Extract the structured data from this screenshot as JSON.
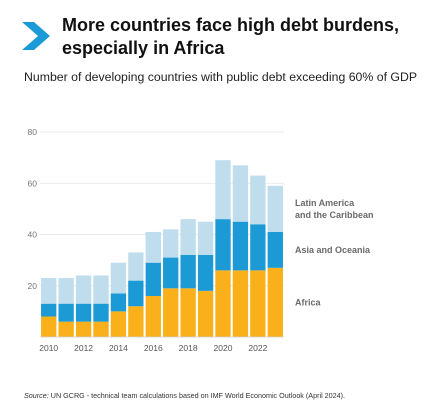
{
  "title_lines": [
    "More countries face high debt burdens,",
    "especially in Africa"
  ],
  "subtitle": "Number of developing countries with public debt exceeding 60% of GDP",
  "source_label": "Source:",
  "source_text": "UN GCRG - technical team calculations based on IMF World Economic Outlook (April 2024).",
  "icon": "chevron-right-icon",
  "colors": {
    "accent": "#1a9ad6",
    "africa": "#f9b01a",
    "asia": "#1b9ad6",
    "latam": "#bfdded",
    "grid": "#e3e3e3",
    "text": "#777777"
  },
  "chart_data": {
    "type": "bar",
    "stacked": true,
    "categories": [
      "2010",
      "2011",
      "2012",
      "2013",
      "2014",
      "2015",
      "2016",
      "2017",
      "2018",
      "2019",
      "2020",
      "2021",
      "2022",
      "2023"
    ],
    "x_tick_labels": [
      "2010",
      "2012",
      "2014",
      "2016",
      "2018",
      "2020",
      "2022"
    ],
    "series": [
      {
        "name": "Africa",
        "values": [
          8,
          6,
          6,
          6,
          10,
          12,
          16,
          19,
          19,
          18,
          26,
          26,
          26,
          27
        ]
      },
      {
        "name": "Asia and Oceania",
        "values": [
          5,
          7,
          7,
          7,
          7,
          10,
          13,
          12,
          13,
          14,
          20,
          19,
          18,
          14
        ]
      },
      {
        "name": "Latin America\nand the Caribbean",
        "values": [
          10,
          10,
          11,
          11,
          12,
          11,
          12,
          11,
          14,
          13,
          23,
          22,
          19,
          18
        ]
      }
    ],
    "yticks": [
      20,
      40,
      60,
      80
    ],
    "ylim": [
      0,
      80
    ],
    "grid": true,
    "legend": "direct labels at right"
  }
}
